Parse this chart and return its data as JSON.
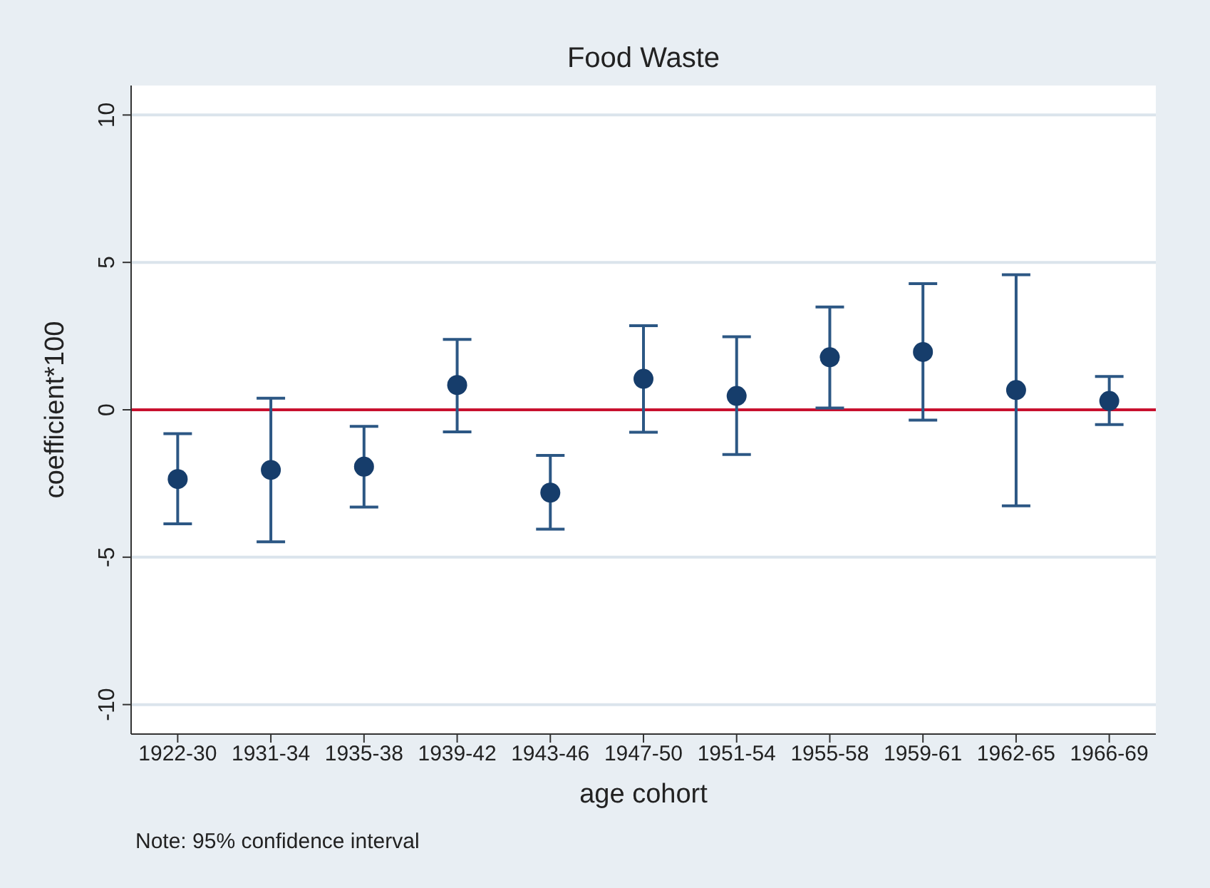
{
  "chart_data": {
    "type": "scatter",
    "title": "Food Waste",
    "xlabel": "age cohort",
    "ylabel": "coefficient*100",
    "categories": [
      "1922-30",
      "1931-34",
      "1935-38",
      "1939-42",
      "1943-46",
      "1947-50",
      "1951-54",
      "1955-58",
      "1959-61",
      "1962-65",
      "1966-69"
    ],
    "series": [
      {
        "color": "#163d6b",
        "values": [
          -2.35,
          -2.04,
          -1.93,
          0.84,
          -2.81,
          1.05,
          0.47,
          1.78,
          1.96,
          0.67,
          0.3
        ],
        "errors": [
          [
            -3.87,
            -0.81
          ],
          [
            -4.48,
            0.39
          ],
          [
            -3.3,
            -0.56
          ],
          [
            -0.75,
            2.39
          ],
          [
            -4.05,
            -1.55
          ],
          [
            -0.76,
            2.85
          ],
          [
            -1.52,
            2.48
          ],
          [
            0.06,
            3.49
          ],
          [
            -0.35,
            4.28
          ],
          [
            -3.26,
            4.58
          ],
          [
            -0.5,
            1.13
          ]
        ]
      }
    ],
    "ylim": [
      -11,
      11
    ],
    "yticks": [
      -10,
      -5,
      0,
      5,
      10
    ],
    "grid": "y",
    "marker": "circle",
    "legend": false,
    "ref_lines": [
      {
        "axis": "y",
        "value": 0,
        "color": "#c8102e"
      }
    ],
    "annotations": [
      "Note: 95% confidence interval"
    ]
  }
}
